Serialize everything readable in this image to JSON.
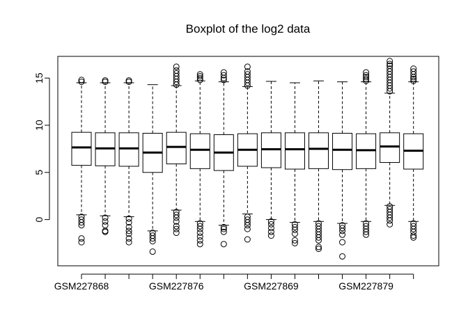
{
  "chart_data": {
    "type": "boxplot",
    "title": "Boxplot of the log2 data",
    "xlabel": "",
    "ylabel": "",
    "ylim": [
      -4.9,
      17.3
    ],
    "yticks": [
      0,
      5,
      10,
      15
    ],
    "x_tick_labels_shown": [
      "GSM227868",
      "GSM227876",
      "GSM227869",
      "GSM227879"
    ],
    "x_tick_label_positions": [
      1,
      5,
      9,
      13
    ],
    "boxes": [
      {
        "q1": 5.75,
        "median": 7.65,
        "q3": 9.25,
        "whisker_low": 0.5,
        "whisker_high": 14.5,
        "outliers_low": [
          0.3,
          0.0,
          -0.3,
          -0.6,
          -2.0,
          -2.4
        ],
        "outliers_high": [
          14.6,
          14.8
        ]
      },
      {
        "q1": 5.7,
        "median": 7.55,
        "q3": 9.2,
        "whisker_low": 0.4,
        "whisker_high": 14.5,
        "outliers_low": [
          0.2,
          -0.2,
          -0.6,
          -1.2,
          -1.3
        ],
        "outliers_high": [
          14.6,
          14.75
        ]
      },
      {
        "q1": 5.65,
        "median": 7.55,
        "q3": 9.2,
        "whisker_low": 0.3,
        "whisker_high": 14.5,
        "outliers_low": [
          0.1,
          -0.3,
          -0.8,
          -1.2,
          -1.5,
          -2.0,
          -2.4
        ],
        "outliers_high": [
          14.6,
          14.75
        ]
      },
      {
        "q1": 5.0,
        "median": 7.1,
        "q3": 9.15,
        "whisker_low": -1.2,
        "whisker_high": 14.3,
        "outliers_low": [
          -1.4,
          -1.7,
          -2.0,
          -2.3,
          -3.4
        ],
        "outliers_high": []
      },
      {
        "q1": 5.9,
        "median": 7.7,
        "q3": 9.25,
        "whisker_low": 1.0,
        "whisker_high": 14.2,
        "outliers_low": [
          0.8,
          0.5,
          0.2,
          -0.2,
          -0.7,
          -1.0,
          -1.4
        ],
        "outliers_high": [
          14.3,
          14.6,
          14.9,
          15.2,
          15.5,
          15.8,
          16.2
        ]
      },
      {
        "q1": 5.4,
        "median": 7.4,
        "q3": 9.1,
        "whisker_low": -0.2,
        "whisker_high": 14.7,
        "outliers_low": [
          -0.4,
          -0.7,
          -1.0,
          -1.4,
          -1.8,
          -2.2,
          -2.6
        ],
        "outliers_high": [
          14.8,
          15.0,
          15.2,
          15.4
        ]
      },
      {
        "q1": 5.2,
        "median": 7.1,
        "q3": 9.0,
        "whisker_low": -0.6,
        "whisker_high": 14.6,
        "outliers_low": [
          -0.8,
          -1.0,
          -1.3,
          -2.6
        ],
        "outliers_high": [
          14.8,
          15.0,
          15.3,
          15.6
        ]
      },
      {
        "q1": 5.65,
        "median": 7.4,
        "q3": 9.1,
        "whisker_low": 0.6,
        "whisker_high": 14.1,
        "outliers_low": [
          0.3,
          0.0,
          -0.3,
          -0.6,
          -1.0,
          -2.1
        ],
        "outliers_high": [
          14.2,
          14.5,
          14.8,
          15.1,
          15.4,
          15.7,
          16.2
        ]
      },
      {
        "q1": 5.5,
        "median": 7.45,
        "q3": 9.2,
        "whisker_low": 0.0,
        "whisker_high": 14.65,
        "outliers_low": [
          -0.2,
          -0.5,
          -0.9,
          -1.3,
          -1.7
        ],
        "outliers_high": []
      },
      {
        "q1": 5.35,
        "median": 7.45,
        "q3": 9.2,
        "whisker_low": -0.3,
        "whisker_high": 14.5,
        "outliers_low": [
          -0.5,
          -0.8,
          -1.1,
          -1.5,
          -2.2,
          -2.5
        ],
        "outliers_high": []
      },
      {
        "q1": 5.4,
        "median": 7.5,
        "q3": 9.2,
        "whisker_low": -0.2,
        "whisker_high": 14.7,
        "outliers_low": [
          -0.4,
          -0.7,
          -1.0,
          -1.3,
          -1.6,
          -1.9,
          -2.2,
          -2.9,
          -3.1
        ],
        "outliers_high": []
      },
      {
        "q1": 5.3,
        "median": 7.4,
        "q3": 9.15,
        "whisker_low": -0.4,
        "whisker_high": 14.6,
        "outliers_low": [
          -0.6,
          -0.9,
          -1.2,
          -1.6,
          -2.4,
          -3.9
        ],
        "outliers_high": []
      },
      {
        "q1": 5.4,
        "median": 7.35,
        "q3": 9.1,
        "whisker_low": -0.2,
        "whisker_high": 14.6,
        "outliers_low": [
          -0.4,
          -0.7,
          -1.0,
          -1.3,
          -1.6
        ],
        "outliers_high": [
          14.7,
          14.9,
          15.1,
          15.3,
          15.6
        ]
      },
      {
        "q1": 6.05,
        "median": 7.75,
        "q3": 9.2,
        "whisker_low": 1.5,
        "whisker_high": 13.4,
        "outliers_low": [
          1.4,
          1.1,
          0.8,
          0.5,
          0.2,
          -0.1,
          -0.5
        ],
        "outliers_high": [
          13.6,
          13.9,
          14.2,
          14.5,
          14.8,
          15.1,
          15.4,
          15.7,
          16.0,
          16.3,
          16.5,
          16.8
        ]
      },
      {
        "q1": 5.35,
        "median": 7.3,
        "q3": 9.1,
        "whisker_low": -0.2,
        "whisker_high": 14.6,
        "outliers_low": [
          -0.4,
          -0.7,
          -1.0,
          -1.3,
          -1.7,
          -1.9
        ],
        "outliers_high": [
          14.7,
          14.9,
          15.1,
          15.4,
          15.7,
          16.0
        ]
      }
    ]
  }
}
